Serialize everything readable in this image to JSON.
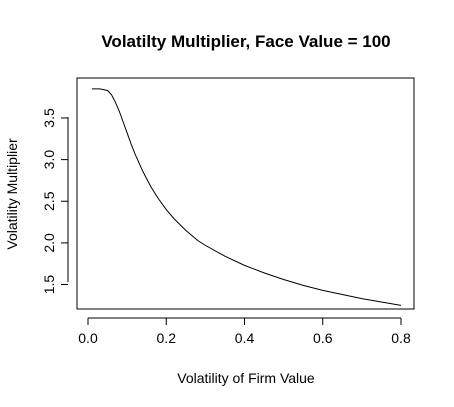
{
  "chart_data": {
    "type": "line",
    "title": "Volatilty Multiplier, Face Value = 100",
    "xlabel": "Volatility of Firm Value",
    "ylabel": "Volatility Multiplier",
    "xlim": [
      0.0,
      0.8
    ],
    "ylim": [
      1.23,
      3.86
    ],
    "xticks": [
      0.0,
      0.2,
      0.4,
      0.6,
      0.8
    ],
    "xtick_labels": [
      "0.0",
      "0.2",
      "0.4",
      "0.6",
      "0.8"
    ],
    "yticks": [
      1.5,
      2.0,
      2.5,
      3.0,
      3.5
    ],
    "ytick_labels": [
      "1.5",
      "2.0",
      "2.5",
      "3.0",
      "3.5"
    ],
    "grid": false,
    "legend": "none",
    "series": [
      {
        "x": [
          0.01,
          0.03,
          0.05,
          0.06,
          0.07,
          0.08,
          0.09,
          0.1,
          0.11,
          0.12,
          0.14,
          0.16,
          0.18,
          0.2,
          0.22,
          0.25,
          0.28,
          0.3,
          0.35,
          0.4,
          0.45,
          0.5,
          0.55,
          0.6,
          0.65,
          0.7,
          0.75,
          0.8
        ],
        "y": [
          3.85,
          3.85,
          3.83,
          3.78,
          3.69,
          3.58,
          3.45,
          3.32,
          3.19,
          3.07,
          2.86,
          2.68,
          2.53,
          2.4,
          2.29,
          2.15,
          2.03,
          1.97,
          1.84,
          1.73,
          1.64,
          1.56,
          1.49,
          1.43,
          1.38,
          1.33,
          1.29,
          1.25
        ]
      }
    ]
  }
}
